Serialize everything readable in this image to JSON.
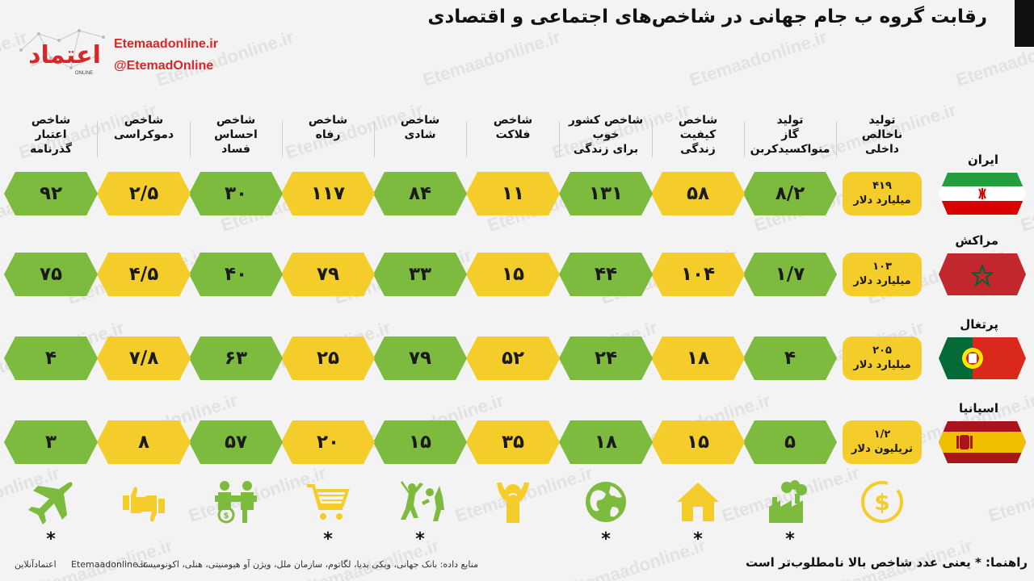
{
  "header": {
    "title": "رقابت گروه ب جام جهانی در شاخص‌های اجتماعی و اقتصادی",
    "site": "Etemaadonline.ir",
    "handle": "@EtemadOnline",
    "logo_text": "اعتماد",
    "logo_sub": "ONLINE",
    "watermark": "Etemaadonline.ir"
  },
  "columns": [
    {
      "label": "تولید\nناخالص\nداخلی",
      "icon": "dollar-coin-icon",
      "star": ""
    },
    {
      "label": "تولید\nگاز\nمنواکسیدکربن",
      "icon": "factory-smoke-icon",
      "star": "*"
    },
    {
      "label": "شاخص\nکیفیت\nزندگی",
      "icon": "house-icon",
      "star": "*"
    },
    {
      "label": "شاخص کشور\nخوب\nبرای زندگی",
      "icon": "globe-icon",
      "star": "*"
    },
    {
      "label": "شاخص\nفلاکت",
      "icon": "distressed-person-icon",
      "star": ""
    },
    {
      "label": "شاخص\nشادی",
      "icon": "happy-people-icon",
      "star": "*"
    },
    {
      "label": "شاخص\nرفاه",
      "icon": "shopping-cart-icon",
      "star": "*"
    },
    {
      "label": "شاخص\nاحساس\nفساد",
      "icon": "bribery-icon",
      "star": ""
    },
    {
      "label": "شاخص\nدموکراسی",
      "icon": "thumbs-icon",
      "star": ""
    },
    {
      "label": "شاخص\nاعتبار\nگذرنامه",
      "icon": "airplane-icon",
      "star": "*"
    }
  ],
  "countries": [
    {
      "name": "ایران",
      "flag": "iran-flag",
      "gdp_value": "۴۱۹",
      "gdp_unit": "میلیارد دلار",
      "values": [
        "۸/۲",
        "۵۸",
        "۱۳۱",
        "۱۱",
        "۸۴",
        "۱۱۷",
        "۳۰",
        "۲/۵",
        "۹۲"
      ],
      "colors": [
        "g",
        "y",
        "g",
        "y",
        "g",
        "y",
        "g",
        "y",
        "g"
      ]
    },
    {
      "name": "مراکش",
      "flag": "morocco-flag",
      "gdp_value": "۱۰۳",
      "gdp_unit": "میلیارد دلار",
      "values": [
        "۱/۷",
        "۱۰۴",
        "۴۴",
        "۱۵",
        "۳۳",
        "۷۹",
        "۴۰",
        "۴/۵",
        "۷۵"
      ],
      "colors": [
        "g",
        "y",
        "g",
        "y",
        "g",
        "y",
        "g",
        "y",
        "g"
      ]
    },
    {
      "name": "پرتغال",
      "flag": "portugal-flag",
      "gdp_value": "۲۰۵",
      "gdp_unit": "میلیارد دلار",
      "values": [
        "۴",
        "۱۸",
        "۲۴",
        "۵۲",
        "۷۹",
        "۲۵",
        "۶۳",
        "۷/۸",
        "۴"
      ],
      "colors": [
        "g",
        "y",
        "g",
        "y",
        "g",
        "y",
        "g",
        "y",
        "g"
      ]
    },
    {
      "name": "اسپانیا",
      "flag": "spain-flag",
      "gdp_value": "۱/۲",
      "gdp_unit": "تریلیون دلار",
      "values": [
        "۵",
        "۱۵",
        "۱۸",
        "۳۵",
        "۱۵",
        "۲۰",
        "۵۷",
        "۸",
        "۳"
      ],
      "colors": [
        "g",
        "y",
        "g",
        "y",
        "g",
        "y",
        "g",
        "y",
        "g"
      ]
    }
  ],
  "colors": {
    "green": "#7dbb3f",
    "yellow": "#f5cd2a",
    "brand_red": "#d62828"
  },
  "footer": {
    "guide": "راهنما: * یعنی عدد شاخص بالا نامطلوب‌تر است",
    "sources": "منابع داده: بانک جهانی، ویکی پدیا، لگاتوم، سازمان ملل، ویژن آو هیومنیتی، هنلی، اکونومیست",
    "site": "Etemaadonline.ir",
    "brand": "اعتمادآنلاین"
  }
}
